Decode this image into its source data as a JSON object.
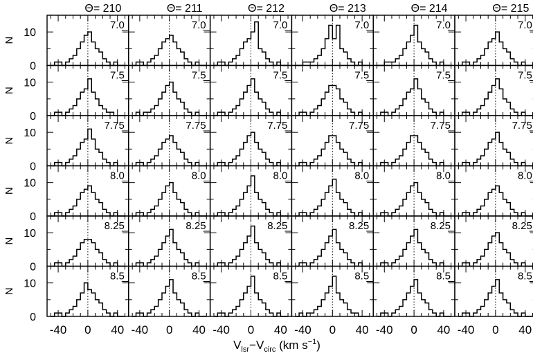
{
  "chart_data": {
    "type": "histogram-grid",
    "theta_symbol": "Θ",
    "theta_labels": [
      "Θ= 210",
      "Θ= 211",
      "Θ= 212",
      "Θ= 213",
      "Θ= 214",
      "Θ= 215"
    ],
    "r_labels": [
      "7.0",
      "7.5",
      "7.75",
      "8.0",
      "8.25",
      "8.5"
    ],
    "ylabel": "N",
    "xlabel_main": "V",
    "xlabel_sub1": "lsr",
    "xlabel_minus": "−V",
    "xlabel_sub2": "circ",
    "xlabel_unit_open": " (km s",
    "xlabel_unit_sup": "−1",
    "xlabel_unit_close": ")",
    "xlim": [
      -55,
      55
    ],
    "ylim": [
      0,
      15
    ],
    "x_ticks": [
      -40,
      0,
      40
    ],
    "x_tick_labels": [
      "-40",
      "0",
      "40"
    ],
    "y_ticks": [
      0,
      10
    ],
    "y_tick_labels": [
      "0",
      "10"
    ],
    "bin_width": 5,
    "bin_start": -50,
    "reference_line_x": 0,
    "histograms": [
      [
        [
          0,
          1,
          1,
          0,
          1,
          2,
          3,
          5,
          7,
          9,
          10,
          7,
          5,
          4,
          2,
          1,
          0,
          1,
          0,
          0
        ],
        [
          0,
          1,
          1,
          0,
          1,
          2,
          3,
          5,
          7,
          8,
          9,
          7,
          5,
          4,
          2,
          1,
          0,
          1,
          0,
          0
        ],
        [
          0,
          1,
          1,
          0,
          1,
          2,
          3,
          5,
          7,
          8,
          10,
          13,
          5,
          4,
          2,
          1,
          0,
          1,
          0,
          0
        ],
        [
          0,
          0,
          1,
          1,
          1,
          2,
          3,
          5,
          8,
          12,
          8,
          12,
          5,
          4,
          2,
          1,
          0,
          1,
          0,
          0
        ],
        [
          0,
          0,
          1,
          1,
          1,
          2,
          3,
          5,
          7,
          9,
          12,
          7,
          5,
          4,
          2,
          1,
          0,
          1,
          0,
          0
        ],
        [
          0,
          1,
          1,
          0,
          1,
          2,
          3,
          5,
          7,
          8,
          10,
          7,
          5,
          4,
          2,
          1,
          0,
          1,
          0,
          0
        ]
      ],
      [
        [
          0,
          1,
          1,
          0,
          1,
          2,
          3,
          5,
          7,
          8,
          11,
          7,
          5,
          3,
          2,
          1,
          1,
          0,
          0,
          0
        ],
        [
          0,
          1,
          0,
          1,
          1,
          2,
          3,
          5,
          7,
          9,
          10,
          7,
          5,
          4,
          2,
          1,
          0,
          1,
          0,
          0
        ],
        [
          0,
          1,
          1,
          0,
          1,
          2,
          3,
          5,
          7,
          9,
          11,
          7,
          5,
          4,
          2,
          1,
          0,
          1,
          0,
          0
        ],
        [
          0,
          1,
          1,
          0,
          1,
          2,
          3,
          5,
          7,
          9,
          9,
          8,
          5,
          4,
          2,
          1,
          0,
          1,
          0,
          0
        ],
        [
          0,
          1,
          1,
          0,
          1,
          2,
          3,
          5,
          7,
          8,
          11,
          8,
          5,
          4,
          2,
          1,
          0,
          1,
          0,
          0
        ],
        [
          0,
          1,
          1,
          0,
          1,
          2,
          3,
          5,
          7,
          9,
          11,
          8,
          5,
          4,
          2,
          1,
          0,
          1,
          0,
          0
        ]
      ],
      [
        [
          0,
          1,
          1,
          0,
          1,
          2,
          3,
          5,
          7,
          8,
          11,
          8,
          5,
          4,
          2,
          1,
          0,
          1,
          0,
          0
        ],
        [
          0,
          1,
          1,
          0,
          1,
          2,
          3,
          5,
          7,
          8,
          9,
          7,
          5,
          4,
          2,
          1,
          0,
          1,
          0,
          0
        ],
        [
          0,
          1,
          1,
          0,
          1,
          2,
          3,
          5,
          7,
          9,
          10,
          7,
          5,
          4,
          2,
          1,
          0,
          1,
          0,
          0
        ],
        [
          0,
          1,
          1,
          0,
          1,
          2,
          3,
          5,
          7,
          9,
          9,
          7,
          5,
          4,
          2,
          1,
          0,
          1,
          0,
          0
        ],
        [
          0,
          1,
          1,
          0,
          1,
          2,
          3,
          5,
          7,
          9,
          9,
          7,
          5,
          4,
          2,
          1,
          0,
          1,
          0,
          0
        ],
        [
          0,
          1,
          1,
          0,
          1,
          2,
          3,
          5,
          7,
          8,
          10,
          7,
          5,
          4,
          2,
          1,
          0,
          1,
          0,
          0
        ]
      ],
      [
        [
          0,
          1,
          1,
          0,
          1,
          2,
          3,
          5,
          7,
          8,
          9,
          7,
          5,
          4,
          2,
          1,
          0,
          1,
          0,
          0
        ],
        [
          0,
          1,
          1,
          0,
          1,
          2,
          3,
          5,
          7,
          9,
          10,
          7,
          5,
          4,
          2,
          1,
          0,
          1,
          0,
          0
        ],
        [
          0,
          1,
          1,
          0,
          1,
          2,
          3,
          5,
          7,
          9,
          12,
          7,
          5,
          4,
          2,
          1,
          0,
          1,
          0,
          0
        ],
        [
          0,
          1,
          1,
          0,
          1,
          2,
          3,
          5,
          7,
          9,
          11,
          7,
          5,
          4,
          2,
          1,
          0,
          1,
          0,
          0
        ],
        [
          0,
          1,
          1,
          0,
          1,
          2,
          3,
          5,
          7,
          9,
          10,
          7,
          5,
          4,
          2,
          1,
          0,
          1,
          0,
          0
        ],
        [
          0,
          1,
          1,
          0,
          1,
          2,
          3,
          5,
          7,
          8,
          9,
          7,
          5,
          4,
          2,
          1,
          0,
          1,
          0,
          0
        ]
      ],
      [
        [
          0,
          1,
          1,
          0,
          1,
          2,
          3,
          5,
          7,
          8,
          8,
          7,
          5,
          4,
          2,
          1,
          0,
          1,
          0,
          0
        ],
        [
          0,
          1,
          1,
          0,
          1,
          2,
          3,
          5,
          7,
          9,
          11,
          7,
          5,
          4,
          2,
          1,
          0,
          1,
          0,
          0
        ],
        [
          0,
          1,
          1,
          0,
          1,
          2,
          3,
          5,
          7,
          9,
          12,
          7,
          5,
          4,
          2,
          1,
          0,
          1,
          0,
          0
        ],
        [
          0,
          1,
          1,
          0,
          1,
          2,
          3,
          5,
          7,
          9,
          11,
          7,
          5,
          4,
          2,
          1,
          0,
          1,
          0,
          0
        ],
        [
          0,
          1,
          1,
          0,
          1,
          2,
          3,
          5,
          7,
          9,
          11,
          7,
          5,
          4,
          2,
          1,
          0,
          1,
          0,
          0
        ],
        [
          0,
          1,
          1,
          0,
          1,
          2,
          3,
          5,
          7,
          9,
          10,
          7,
          5,
          4,
          2,
          1,
          0,
          1,
          0,
          0
        ]
      ],
      [
        [
          0,
          1,
          1,
          0,
          1,
          2,
          3,
          5,
          7,
          10,
          8,
          7,
          5,
          4,
          2,
          1,
          0,
          1,
          0,
          0
        ],
        [
          0,
          1,
          1,
          0,
          1,
          2,
          3,
          5,
          7,
          9,
          11,
          7,
          5,
          4,
          2,
          1,
          0,
          1,
          0,
          0
        ],
        [
          0,
          1,
          1,
          0,
          1,
          2,
          3,
          5,
          7,
          9,
          12,
          7,
          5,
          4,
          2,
          1,
          0,
          1,
          0,
          0
        ],
        [
          0,
          1,
          0,
          1,
          1,
          2,
          3,
          5,
          7,
          9,
          12,
          7,
          5,
          4,
          2,
          1,
          1,
          0,
          0,
          0
        ],
        [
          0,
          1,
          1,
          0,
          1,
          2,
          3,
          5,
          7,
          9,
          11,
          7,
          5,
          4,
          2,
          1,
          0,
          1,
          0,
          0
        ],
        [
          0,
          1,
          1,
          0,
          1,
          2,
          3,
          5,
          7,
          9,
          11,
          7,
          5,
          4,
          2,
          1,
          0,
          1,
          0,
          0
        ]
      ]
    ]
  }
}
